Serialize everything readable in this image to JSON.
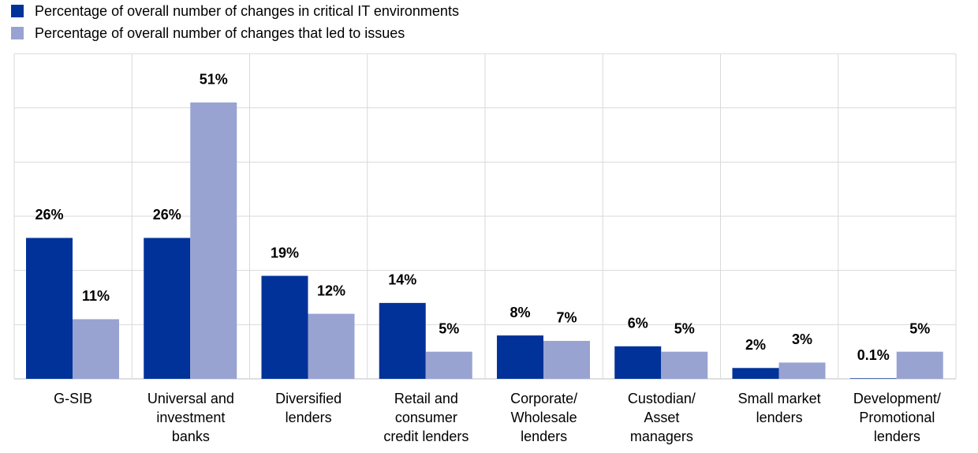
{
  "chart_data": {
    "type": "bar",
    "categories": [
      "G-SIB",
      "Universal and\ninvestment\nbanks",
      "Diversified\nlenders",
      "Retail and\nconsumer\ncredit lenders",
      "Corporate/\nWholesale\nlenders",
      "Custodian/\nAsset\nmanagers",
      "Small market\nlenders",
      "Development/\nPromotional\nlenders"
    ],
    "series": [
      {
        "name": "Percentage of overall number of changes in critical IT environments",
        "color": "#003299",
        "values": [
          26,
          26,
          19,
          14,
          8,
          6,
          2,
          0.1
        ],
        "value_labels": [
          "26%",
          "26%",
          "19%",
          "14%",
          "8%",
          "6%",
          "2%",
          "0.1%"
        ]
      },
      {
        "name": "Percentage of overall number of changes that led to issues",
        "color": "#99a3d1",
        "values": [
          11,
          51,
          12,
          5,
          7,
          5,
          3,
          5
        ],
        "value_labels": [
          "11%",
          "51%",
          "12%",
          "5%",
          "7%",
          "5%",
          "3%",
          "5%"
        ]
      }
    ],
    "ylim": [
      0,
      60
    ],
    "yticks": [
      0,
      10,
      20,
      30,
      40,
      50,
      60
    ],
    "grid": true,
    "legend": "top-left"
  }
}
